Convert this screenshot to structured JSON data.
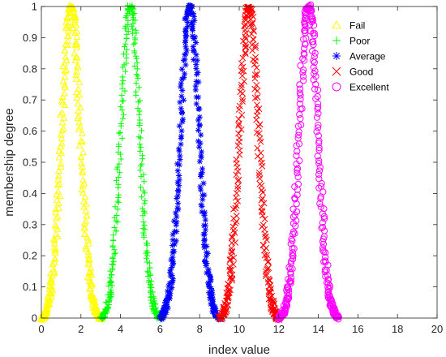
{
  "chart_data": {
    "type": "scatter",
    "title": "",
    "xlabel": "index value",
    "ylabel": "membership degree",
    "xlim": [
      0,
      20
    ],
    "ylim": [
      0,
      1
    ],
    "xticks": [
      "0",
      "2",
      "4",
      "6",
      "8",
      "10",
      "12",
      "14",
      "16",
      "18",
      "20"
    ],
    "yticks": [
      "0",
      "0.1",
      "0.2",
      "0.3",
      "0.4",
      "0.5",
      "0.6",
      "0.7",
      "0.8",
      "0.9",
      "1"
    ],
    "grid": false,
    "legend_position": "top-right",
    "series": [
      {
        "name": "Fail",
        "marker": "triangle",
        "color": "#ffff00",
        "peak": 1.5,
        "support": [
          0.0,
          3.0
        ],
        "sampled_points": 300,
        "points": [
          [
            0.0,
            0.0
          ],
          [
            0.15,
            0.02
          ],
          [
            0.3,
            0.05
          ],
          [
            0.45,
            0.09
          ],
          [
            0.6,
            0.15
          ],
          [
            0.75,
            0.22
          ],
          [
            0.9,
            0.32
          ],
          [
            1.05,
            0.45
          ],
          [
            1.2,
            0.62
          ],
          [
            1.35,
            0.84
          ],
          [
            1.5,
            1.0
          ],
          [
            1.65,
            0.86
          ],
          [
            1.8,
            0.66
          ],
          [
            1.95,
            0.48
          ],
          [
            2.1,
            0.34
          ],
          [
            2.25,
            0.23
          ],
          [
            2.4,
            0.15
          ],
          [
            2.55,
            0.09
          ],
          [
            2.7,
            0.05
          ],
          [
            2.85,
            0.02
          ],
          [
            3.0,
            0.0
          ]
        ]
      },
      {
        "name": "Poor",
        "marker": "plus",
        "color": "#00ff00",
        "peak": 4.5,
        "support": [
          3.0,
          6.0
        ],
        "sampled_points": 300,
        "points": [
          [
            3.0,
            0.0
          ],
          [
            3.15,
            0.02
          ],
          [
            3.3,
            0.05
          ],
          [
            3.45,
            0.09
          ],
          [
            3.6,
            0.15
          ],
          [
            3.75,
            0.22
          ],
          [
            3.9,
            0.32
          ],
          [
            4.05,
            0.45
          ],
          [
            4.2,
            0.62
          ],
          [
            4.35,
            0.84
          ],
          [
            4.5,
            1.0
          ],
          [
            4.65,
            0.86
          ],
          [
            4.8,
            0.66
          ],
          [
            4.95,
            0.48
          ],
          [
            5.1,
            0.34
          ],
          [
            5.25,
            0.23
          ],
          [
            5.4,
            0.15
          ],
          [
            5.55,
            0.09
          ],
          [
            5.7,
            0.05
          ],
          [
            5.85,
            0.02
          ],
          [
            6.0,
            0.0
          ]
        ]
      },
      {
        "name": "Average",
        "marker": "asterisk",
        "color": "#0000ff",
        "peak": 7.5,
        "support": [
          6.0,
          9.0
        ],
        "sampled_points": 300,
        "points": [
          [
            6.0,
            0.0
          ],
          [
            6.15,
            0.02
          ],
          [
            6.3,
            0.05
          ],
          [
            6.45,
            0.09
          ],
          [
            6.6,
            0.15
          ],
          [
            6.75,
            0.22
          ],
          [
            6.9,
            0.32
          ],
          [
            7.05,
            0.45
          ],
          [
            7.2,
            0.62
          ],
          [
            7.35,
            0.84
          ],
          [
            7.5,
            1.0
          ],
          [
            7.65,
            0.86
          ],
          [
            7.8,
            0.66
          ],
          [
            7.95,
            0.48
          ],
          [
            8.1,
            0.34
          ],
          [
            8.25,
            0.23
          ],
          [
            8.4,
            0.15
          ],
          [
            8.55,
            0.09
          ],
          [
            8.7,
            0.05
          ],
          [
            8.85,
            0.02
          ],
          [
            9.0,
            0.0
          ]
        ]
      },
      {
        "name": "Good",
        "marker": "x",
        "color": "#ff0000",
        "peak": 10.5,
        "support": [
          9.0,
          12.0
        ],
        "sampled_points": 300,
        "points": [
          [
            9.0,
            0.0
          ],
          [
            9.15,
            0.02
          ],
          [
            9.3,
            0.05
          ],
          [
            9.45,
            0.09
          ],
          [
            9.6,
            0.15
          ],
          [
            9.75,
            0.22
          ],
          [
            9.9,
            0.32
          ],
          [
            10.05,
            0.45
          ],
          [
            10.2,
            0.62
          ],
          [
            10.35,
            0.84
          ],
          [
            10.5,
            1.0
          ],
          [
            10.65,
            0.86
          ],
          [
            10.8,
            0.66
          ],
          [
            10.95,
            0.48
          ],
          [
            11.1,
            0.34
          ],
          [
            11.25,
            0.23
          ],
          [
            11.4,
            0.15
          ],
          [
            11.55,
            0.09
          ],
          [
            11.7,
            0.05
          ],
          [
            11.85,
            0.02
          ],
          [
            12.0,
            0.0
          ]
        ]
      },
      {
        "name": "Excellent",
        "marker": "circle",
        "color": "#ff00ff",
        "peak": 13.5,
        "support": [
          12.0,
          15.0
        ],
        "sampled_points": 300,
        "points": [
          [
            12.0,
            0.0
          ],
          [
            12.15,
            0.02
          ],
          [
            12.3,
            0.05
          ],
          [
            12.45,
            0.09
          ],
          [
            12.6,
            0.15
          ],
          [
            12.75,
            0.22
          ],
          [
            12.9,
            0.32
          ],
          [
            13.05,
            0.45
          ],
          [
            13.2,
            0.62
          ],
          [
            13.35,
            0.84
          ],
          [
            13.5,
            1.0
          ],
          [
            13.65,
            0.86
          ],
          [
            13.8,
            0.66
          ],
          [
            13.95,
            0.48
          ],
          [
            14.1,
            0.34
          ],
          [
            14.25,
            0.23
          ],
          [
            14.4,
            0.15
          ],
          [
            14.55,
            0.09
          ],
          [
            14.7,
            0.05
          ],
          [
            14.85,
            0.02
          ],
          [
            15.0,
            0.0
          ]
        ]
      }
    ]
  }
}
